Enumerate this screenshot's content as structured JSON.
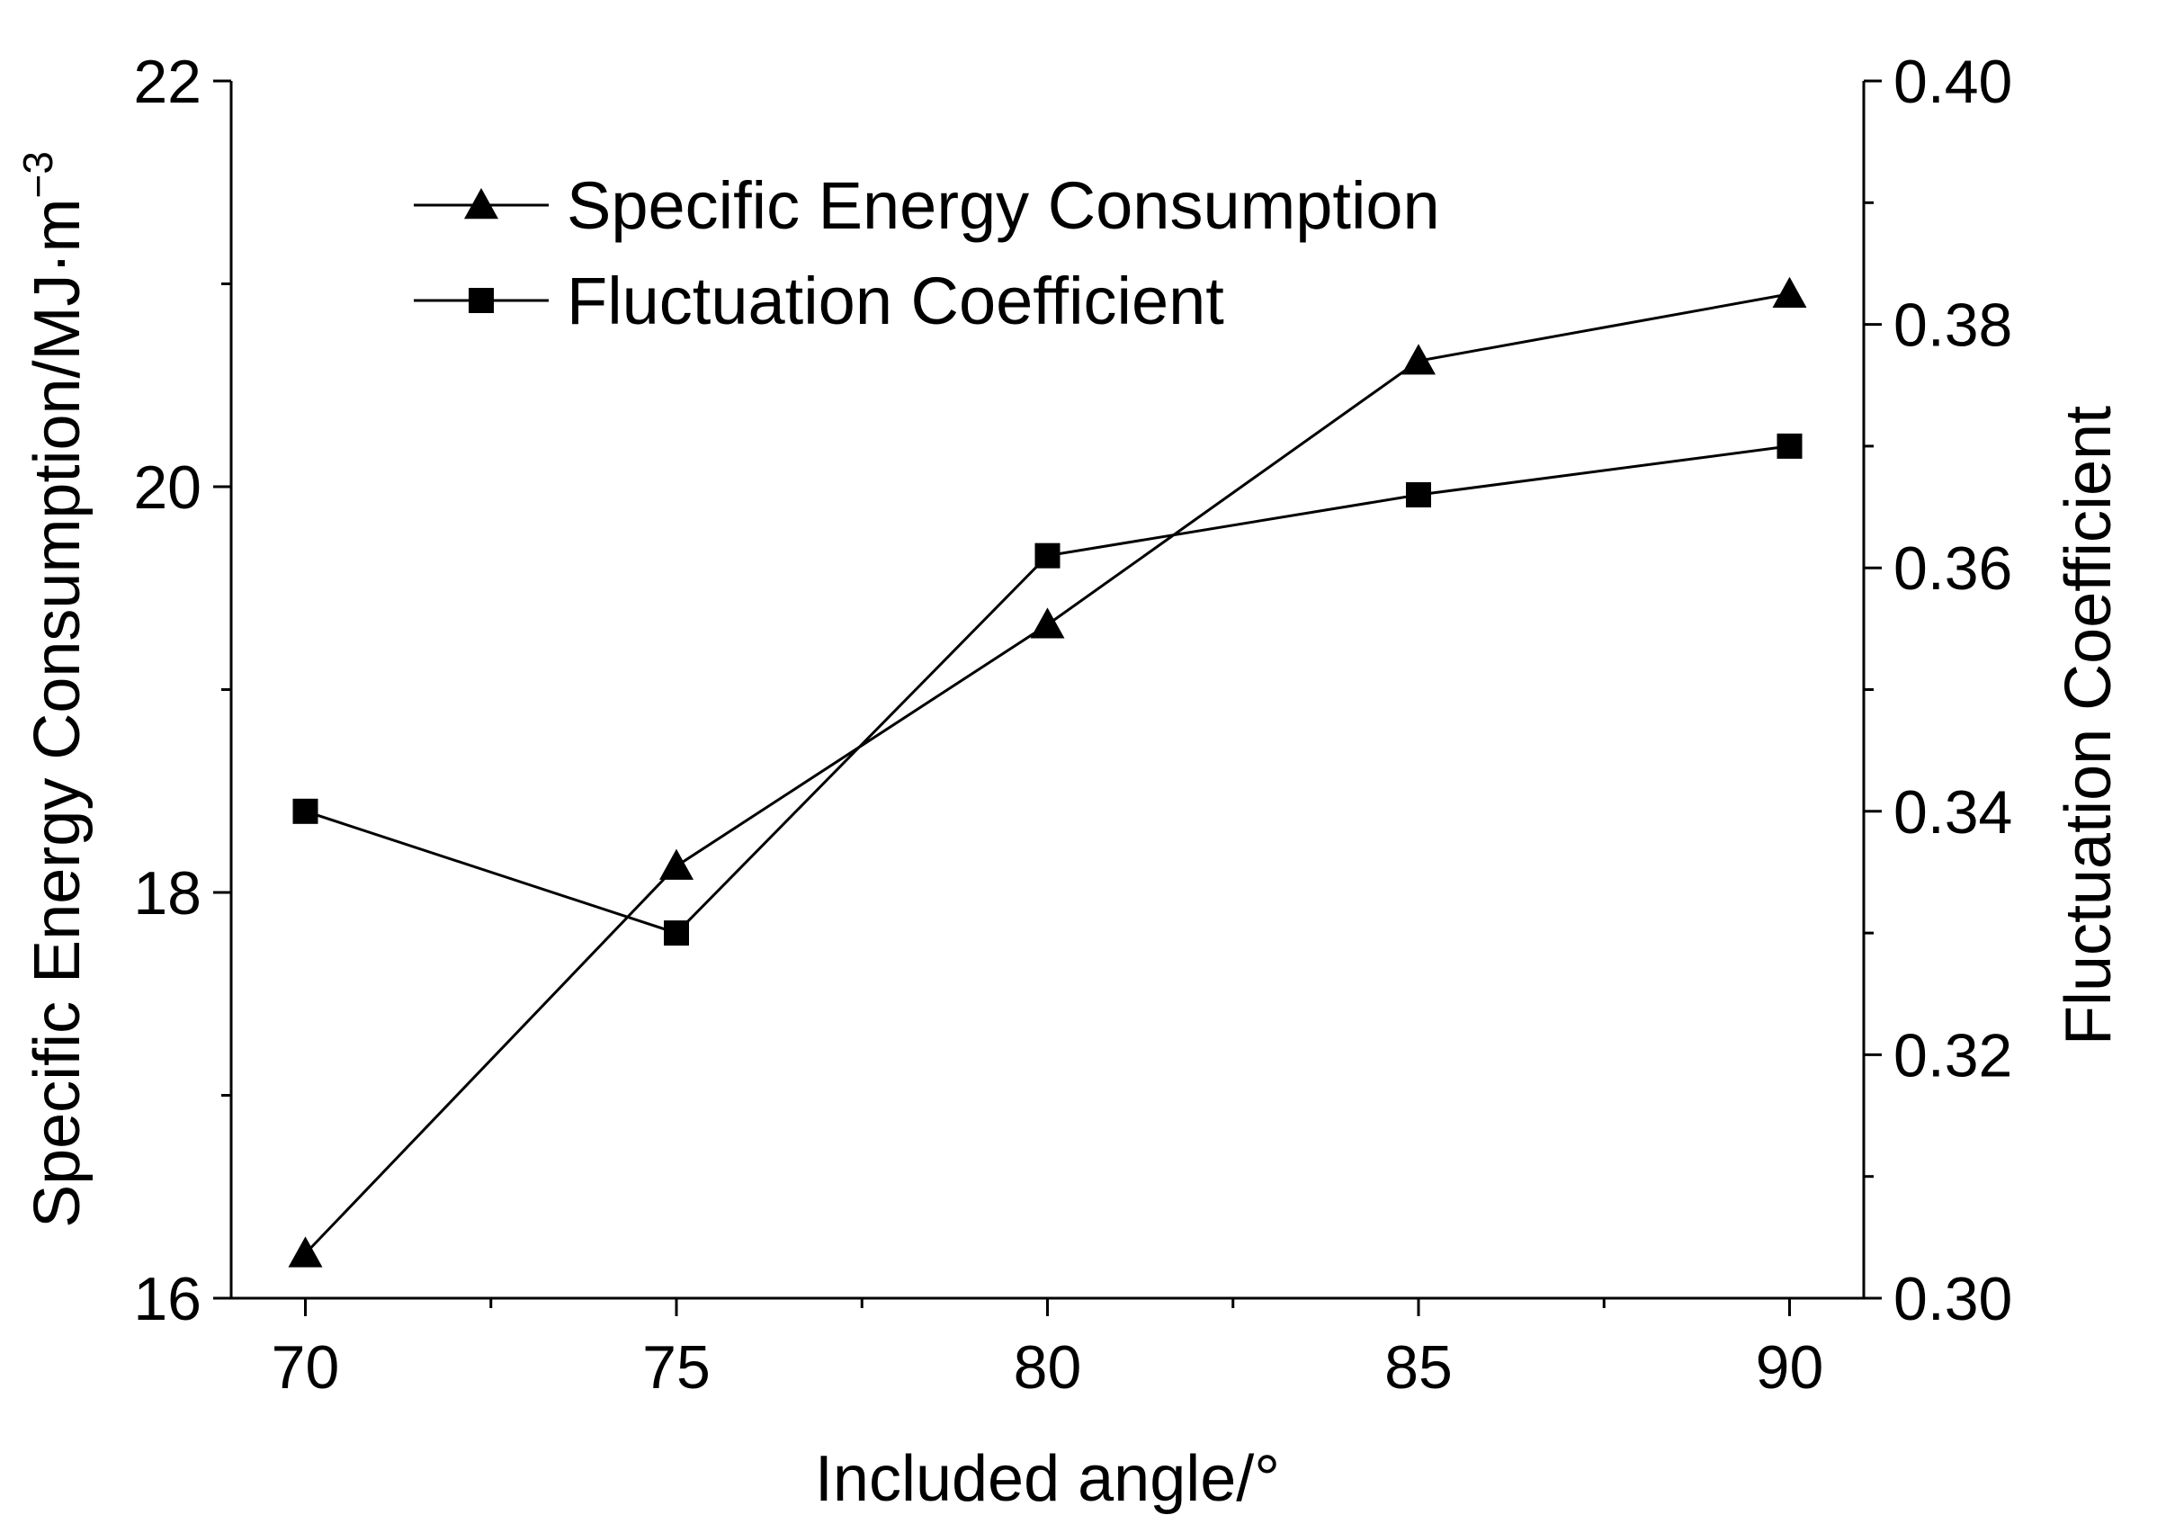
{
  "chart_data": {
    "type": "line",
    "dual_axis": true,
    "x": [
      70,
      75,
      80,
      85,
      90
    ],
    "xlabel": "Included angle/°",
    "xlim": [
      69,
      91
    ],
    "x_ticks": [
      70,
      75,
      80,
      85,
      90
    ],
    "y_left": {
      "label_main": "Specific Energy Consumption/MJ·m",
      "label_sup": "−3",
      "lim": [
        16,
        22
      ],
      "ticks": [
        16,
        18,
        20,
        22
      ],
      "tick_labels": [
        "16",
        "18",
        "20",
        "22"
      ]
    },
    "y_right": {
      "label": "Fluctuation Coefficient",
      "lim": [
        0.3,
        0.4
      ],
      "ticks": [
        0.3,
        0.32,
        0.34,
        0.36,
        0.38,
        0.4
      ],
      "tick_labels": [
        "0.30",
        "0.32",
        "0.34",
        "0.36",
        "0.38",
        "0.40"
      ]
    },
    "series": [
      {
        "name": "Specific Energy Consumption",
        "axis": "left",
        "marker": "triangle",
        "values": [
          16.22,
          18.13,
          19.32,
          20.62,
          20.95
        ]
      },
      {
        "name": "Fluctuation Coefficient",
        "axis": "right",
        "marker": "square",
        "values": [
          0.34,
          0.33,
          0.361,
          0.366,
          0.37
        ]
      }
    ],
    "legend_position": "top-left",
    "grid": false
  }
}
